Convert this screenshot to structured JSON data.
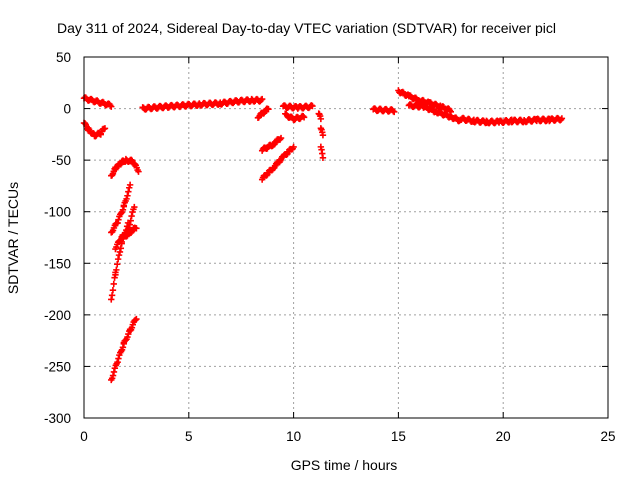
{
  "chart_data": {
    "type": "scatter",
    "title": "Day 311 of 2024, Sidereal Day-to-day VTEC variation (SDTVAR) for receiver picl",
    "xlabel": "GPS time / hours",
    "ylabel": "SDTVAR / TECUs",
    "xlim": [
      0,
      25
    ],
    "ylim": [
      -300,
      50
    ],
    "xticks": [
      "0",
      "5",
      "10",
      "15",
      "20",
      "25"
    ],
    "yticks": [
      "50",
      "0",
      "-50",
      "-100",
      "-150",
      "-200",
      "-250",
      "-300"
    ],
    "grid": true,
    "marker": "plus",
    "color": "#ff0000",
    "segments": [
      {
        "x": [
          0.0,
          1.3
        ],
        "y": [
          10,
          3
        ]
      },
      {
        "x": [
          0.0,
          0.2,
          0.5,
          0.8,
          1.0
        ],
        "y": [
          -14,
          -20,
          -26,
          -24,
          -18
        ]
      },
      {
        "x": [
          1.3,
          1.5,
          1.8,
          2.0,
          2.3,
          2.6
        ],
        "y": [
          -65,
          -58,
          -52,
          -50,
          -51,
          -60
        ]
      },
      {
        "x": [
          1.3,
          1.6,
          1.9,
          2.2
        ],
        "y": [
          -120,
          -110,
          -95,
          -75
        ]
      },
      {
        "x": [
          1.3,
          1.5,
          1.8,
          2.1
        ],
        "y": [
          -185,
          -160,
          -130,
          -112
        ]
      },
      {
        "x": [
          1.5,
          1.8,
          2.1,
          2.4
        ],
        "y": [
          -135,
          -125,
          -118,
          -95
        ]
      },
      {
        "x": [
          1.9,
          2.2,
          2.5
        ],
        "y": [
          -125,
          -120,
          -115
        ]
      },
      {
        "x": [
          1.3,
          1.6,
          1.9,
          2.2,
          2.5
        ],
        "y": [
          -263,
          -245,
          -228,
          -215,
          -203
        ]
      },
      {
        "x": [
          2.8,
          4.0,
          5.5,
          6.5,
          7.3,
          8.0,
          8.5
        ],
        "y": [
          0,
          2,
          4,
          5,
          7,
          8,
          8
        ]
      },
      {
        "x": [
          8.3,
          8.8
        ],
        "y": [
          -8,
          0
        ]
      },
      {
        "x": [
          8.5,
          9.0,
          9.4
        ],
        "y": [
          -40,
          -35,
          -28
        ]
      },
      {
        "x": [
          8.5,
          9.0,
          9.5,
          10.0
        ],
        "y": [
          -68,
          -58,
          -47,
          -37
        ]
      },
      {
        "x": [
          9.5,
          10.2,
          10.9
        ],
        "y": [
          2,
          1,
          2
        ]
      },
      {
        "x": [
          9.6,
          10.0,
          10.5
        ],
        "y": [
          -6,
          -10,
          -8
        ]
      },
      {
        "x": [
          11.2,
          11.3
        ],
        "y": [
          -5,
          -10
        ]
      },
      {
        "x": [
          11.3,
          11.4
        ],
        "y": [
          -20,
          -25
        ]
      },
      {
        "x": [
          11.3,
          11.4
        ],
        "y": [
          -38,
          -47
        ]
      },
      {
        "x": [
          13.8,
          14.8
        ],
        "y": [
          -1,
          -2
        ]
      },
      {
        "x": [
          15.0,
          15.5,
          16.0,
          16.5,
          17.0,
          17.5
        ],
        "y": [
          17,
          12,
          8,
          5,
          2,
          -2
        ]
      },
      {
        "x": [
          15.5,
          16.2,
          16.8,
          17.5,
          18.0
        ],
        "y": [
          3,
          2,
          -3,
          -8,
          -12
        ]
      },
      {
        "x": [
          18.0,
          18.6,
          19.2,
          19.8,
          20.4,
          21.0,
          21.6,
          22.2,
          22.8
        ],
        "y": [
          -10,
          -12,
          -13,
          -13,
          -12,
          -12,
          -11,
          -11,
          -10
        ]
      }
    ]
  }
}
